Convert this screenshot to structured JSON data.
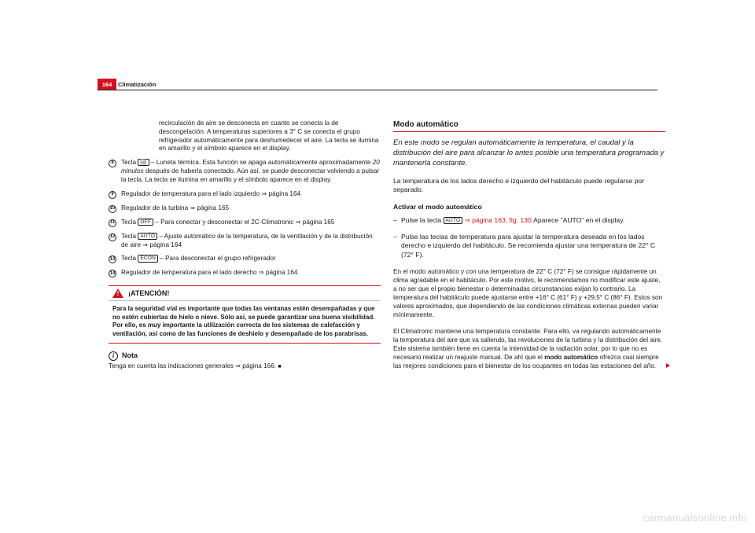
{
  "page_number": "164",
  "header_section": "Climatización",
  "left": {
    "continuation": "recirculación de aire se desconecta en cuanto se conecta la de descongelación. A temperaturas superiores a 3° C se conecta el grupo refrigerador automáticamente para deshumedecer el aire. La tecla se ilumina en amarillo y el símbolo aparece en el display.",
    "items": {
      "8": {
        "num": "8",
        "pre": "Tecla ",
        "key": "🔙",
        "post": " – Luneta térmica. Esta función se apaga automáticamente aproximadamente ",
        "em": "20 minutos",
        "post2": " después de haberla conectado. Aún así, se puede desconectar volviendo a pulsar la tecla. La tecla se ilumina en amarillo  y el símbolo aparece en el display."
      },
      "9": {
        "num": "9",
        "txt": "Regulador de temperatura para el lado izquierdo ⇒ página 164"
      },
      "10": {
        "num": "10",
        "txt": "Regulador de la turbina ⇒ página 165"
      },
      "11": {
        "num": "11",
        "pre": "Tecla ",
        "key": "OFF",
        "post": " –  Para conectar y desconectar el 2C-Climatronic ⇒ página 165"
      },
      "12": {
        "num": "12",
        "pre": "Tecla ",
        "key": "AUTO",
        "post": " – Ajuste automático de la temperatura, de la ventilación y de la distribución de aire ⇒ página 164"
      },
      "13": {
        "num": "13",
        "pre": "Tecla ",
        "key": "ECON",
        "post": " – Para desconectar el grupo refrigerador"
      },
      "14": {
        "num": "14",
        "txt": "Regulador de temperatura para el lado derecho ⇒ página 164"
      }
    },
    "warn_title": "¡ATENCIÓN!",
    "warn_body": "Para la seguridad vial es importante que todas las ventanas estén desempañadas y que no estén cubiertas de hielo o nieve. Sólo así, se puede garantizar una buena visibilidad. Por ello, es muy importante la utilización correcta de los sistemas de calefacción y ventilación, así como de las funciones de deshielo y desempañado de los parabrisas.",
    "note_title": "Nota",
    "note_body": "Tenga en cuenta las indicaciones generales ⇒ página 166."
  },
  "right": {
    "heading": "Modo automático",
    "intro": "En este modo se regulan automáticamente la temperatura, el caudal y la distribución del aire para alcanzar lo antes posible una temperatura programada y mantenerla constante.",
    "p1": "La temperatura de los lados derecho e izquierdo del habitáculo puede regularse por separado.",
    "sub": "Activar el modo automático",
    "b1_pre": "Pulse la tecla ",
    "b1_key": "AUTO",
    "b1_ref": " ⇒ página 163, fig. 130",
    "b1_post": ".Aparece \"AUTO\" en el display.",
    "b2": "Pulse las teclas de temperatura para ajustar la temperatura deseada en los lados derecho e izquierdo del habitáculo. Se recomienda ajustar una temperatura de 22° C (72° F).",
    "p2": "En el modo automático y con una temperatura de 22° C (72° F) se consigue rápidamente un clima agradable en el habitáculo. Por este motivo, le recomendamos no modificar este ajuste, a no ser que el propio bienestar o determinadas circunstancias exijan lo contrario. La temperatura del habitáculo puede ajustarse entre +16° C (61° F) y +29,5° C (86° F). Estos son valores aproximados, que dependiendo de las condiciones climáticas externas pueden variar mínimamente.",
    "p3_pre": "El Climatronic mantiene una temperatura constante. Para ello, va regulando automáticamente la temperatura del aire que va saliendo, las revoluciones de la turbina y la distribución del aire. Este sistema también tiene en cuenta la intensidad de la radiación solar, por lo que no es necesario realizar un reajuste manual. De ahí que el ",
    "p3_bold": "modo automático",
    "p3_post": " ofrezca casi siempre las mejores condiciones para el bienestar de los ocupantes en todas las estaciones del año."
  },
  "watermark": "carmanualsonline.info"
}
